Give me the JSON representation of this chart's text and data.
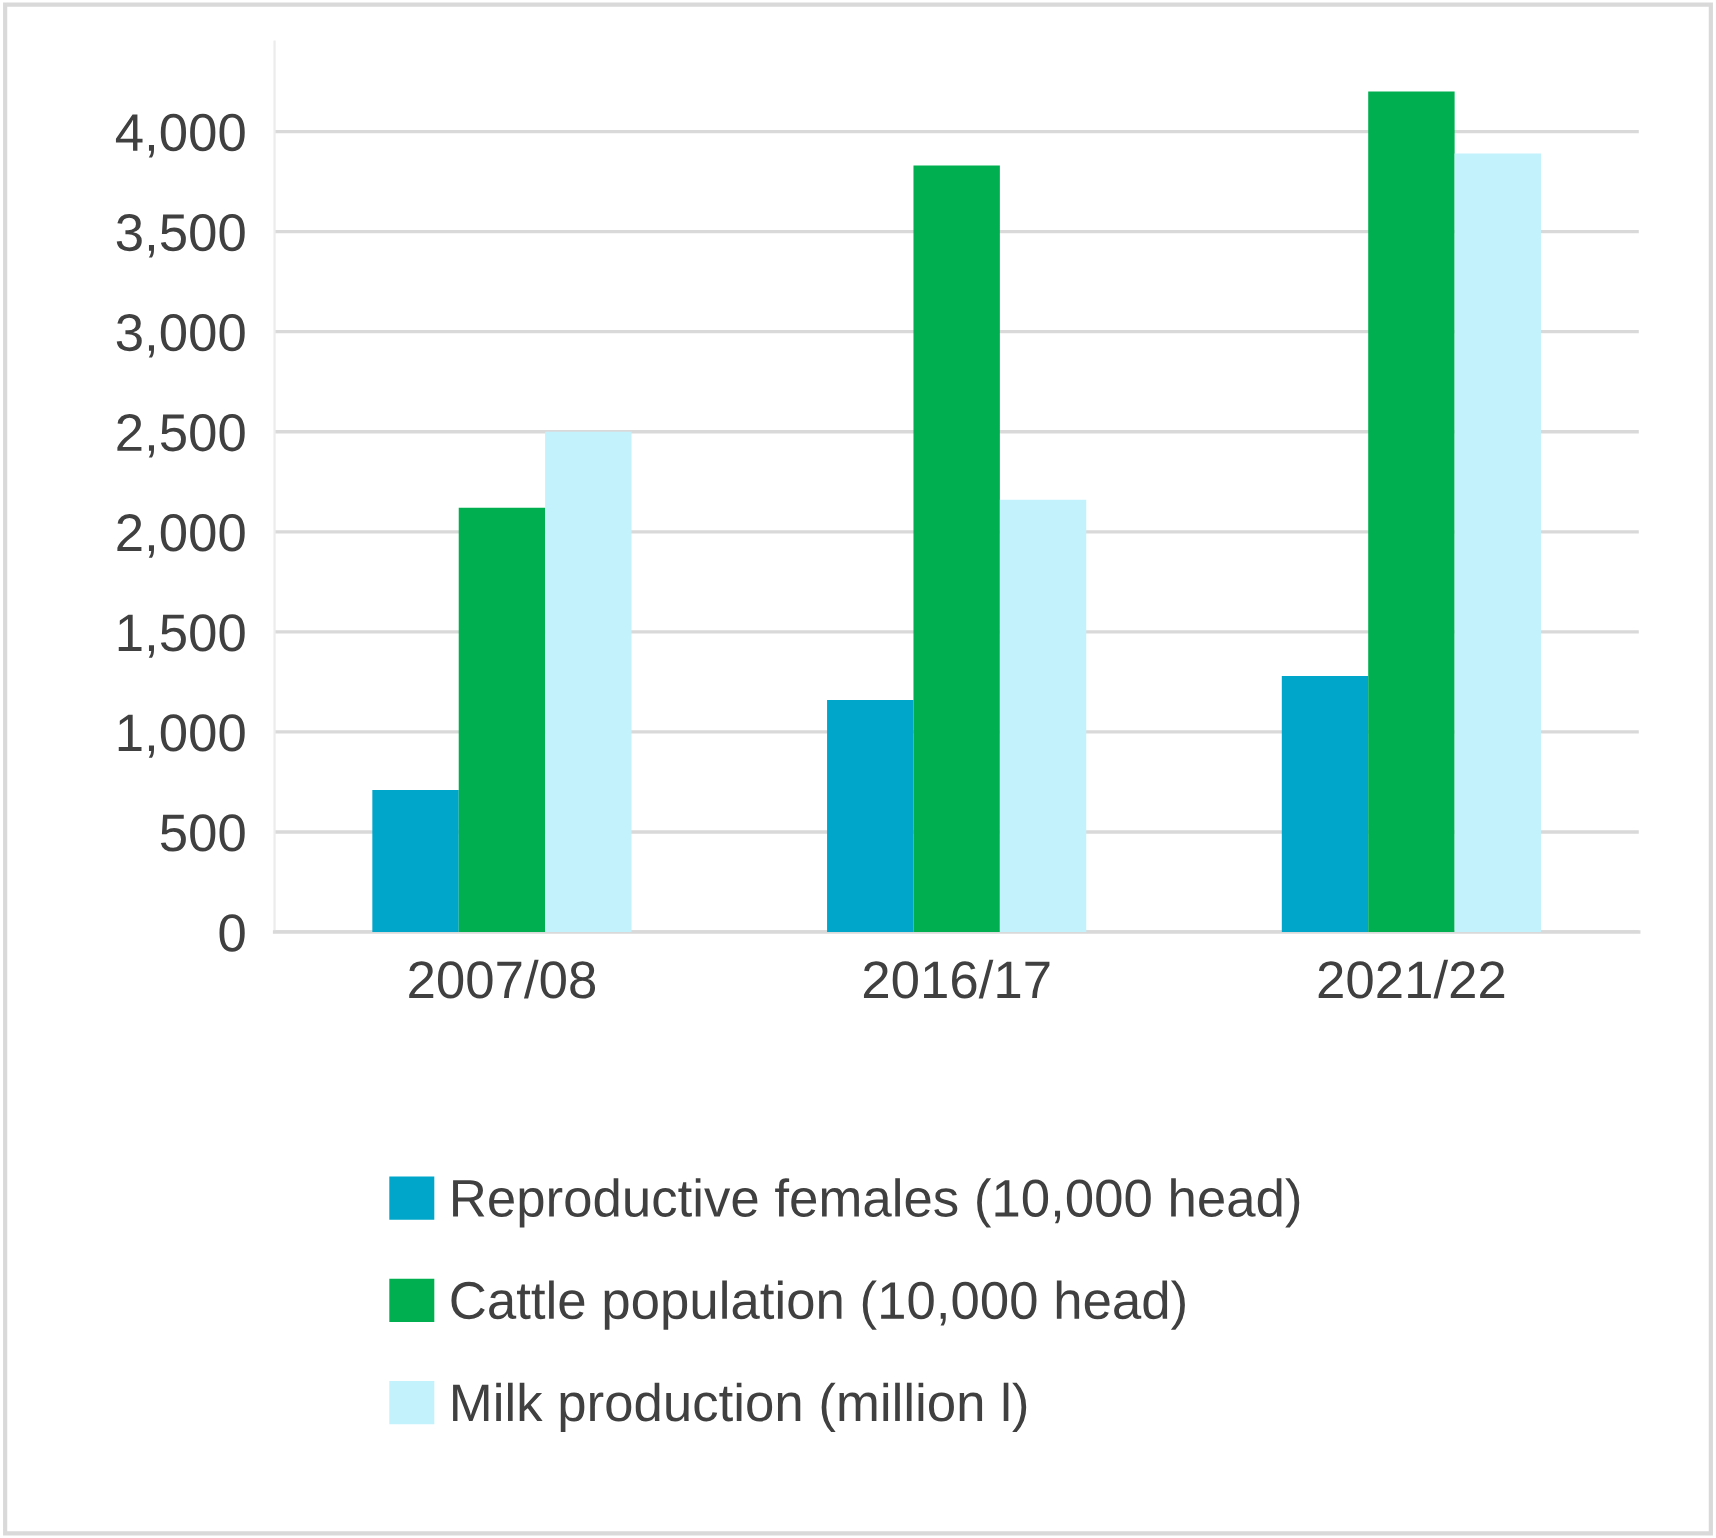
{
  "chart_data": {
    "type": "bar",
    "categories": [
      "2007/08",
      "2016/17",
      "2021/22"
    ],
    "series": [
      {
        "name": "Reproductive females (10,000 head)",
        "color": "#00a6c9",
        "values": [
          710,
          1160,
          1280
        ]
      },
      {
        "name": "Cattle population (10,000 head)",
        "color": "#00b050",
        "values": [
          2120,
          3830,
          4200
        ]
      },
      {
        "name": "Milk production (million l)",
        "color": "#c3f2fd",
        "values": [
          2500,
          2160,
          3890
        ]
      }
    ],
    "ylim": [
      0,
      4450
    ],
    "yticks": [
      0,
      {
        "value": 500,
        "label": "500"
      },
      {
        "value": 1000,
        "label": "1,000"
      },
      {
        "value": 1500,
        "label": "1,500"
      },
      {
        "value": 2000,
        "label": "2,000"
      },
      {
        "value": 2500,
        "label": "2,500"
      },
      {
        "value": 3000,
        "label": "3,000"
      },
      {
        "value": 3500,
        "label": "3,500"
      },
      {
        "value": 4000,
        "label": "4,000"
      }
    ],
    "grid": "y",
    "legend": "bottom"
  }
}
